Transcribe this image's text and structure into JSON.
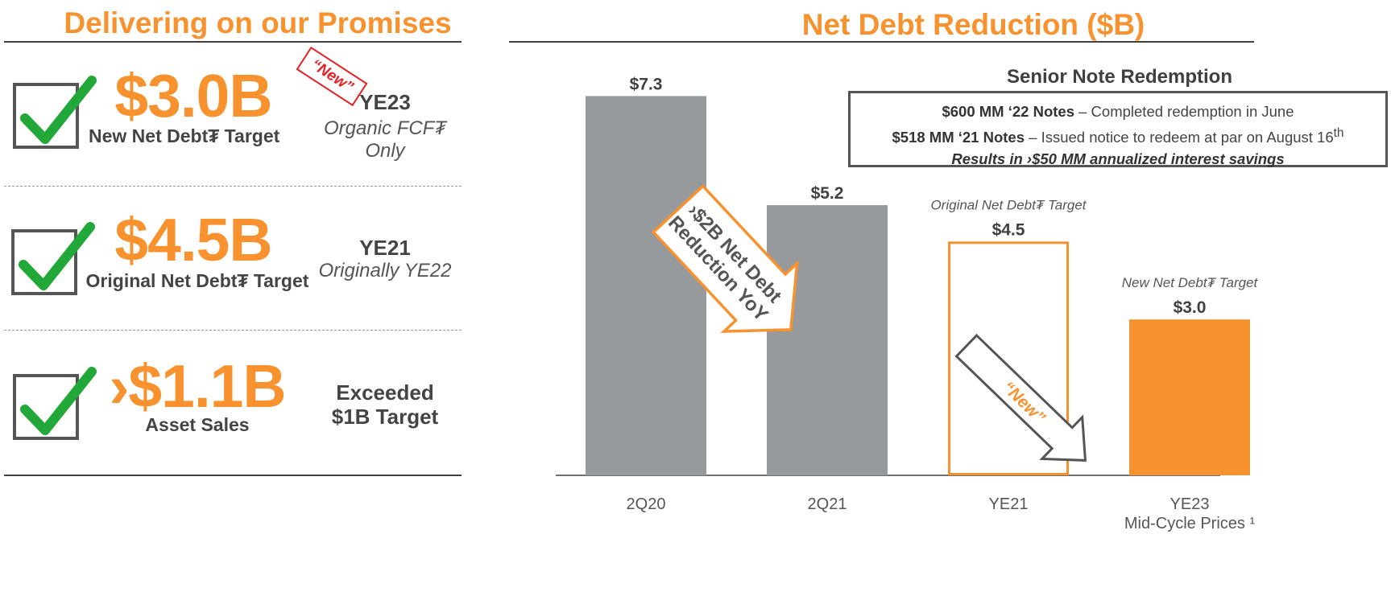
{
  "left_panel": {
    "title": "Delivering on our Promises",
    "items": [
      {
        "value": "$3.0B",
        "label": "New Net Debt₮ Target",
        "side_bold": "YE23",
        "side_italic": "Organic FCF₮ Only",
        "stamp": "“New”"
      },
      {
        "value": "$4.5B",
        "label": "Original Net Debt₮ Target",
        "side_bold": "YE21",
        "side_italic": "Originally YE22"
      },
      {
        "value": "›$1.1B",
        "label": "Asset Sales",
        "side_bold_1": "Exceeded",
        "side_bold_2": "$1B Target"
      }
    ],
    "colors": {
      "accent": "#f7922f",
      "check": "#22a838",
      "stamp": "#e51f24"
    }
  },
  "right_panel": {
    "title": "Net Debt Reduction ($B)",
    "note": {
      "title": "Senior Note Redemption",
      "line1_bold": "$600 MM ‘22 Notes",
      "line1_rest": " – Completed redemption in June",
      "line2_bold": "$518 MM ‘21 Notes",
      "line2_rest": " – Issued notice to redeem at par on August 16",
      "line2_sup": "th",
      "line3": "Results in ›$50 MM annualized interest savings"
    },
    "arrow1_line1": "›$2B Net Debt",
    "arrow1_line2": "Reduction YoY",
    "arrow2_text": "“New”"
  },
  "chart_data": {
    "type": "bar",
    "categories": [
      "2Q20",
      "2Q21",
      "YE21",
      "YE23"
    ],
    "category_sublabels": [
      "",
      "",
      "",
      "Mid-Cycle Prices ¹"
    ],
    "values": [
      7.3,
      5.2,
      4.5,
      3.0
    ],
    "data_labels": [
      "$7.3",
      "$5.2",
      "$4.5",
      "$3.0"
    ],
    "bar_annotations": [
      "",
      "",
      "Original Net Debt₮ Target",
      "New Net Debt₮ Target"
    ],
    "bar_styles": [
      "solid-gray",
      "solid-gray",
      "outline-orange",
      "solid-orange"
    ],
    "colors": {
      "gray": "#969a9c",
      "orange": "#f7922f"
    },
    "ylim": [
      0,
      8
    ],
    "grid": false,
    "legend": "none",
    "title": "Net Debt Reduction ($B)"
  }
}
